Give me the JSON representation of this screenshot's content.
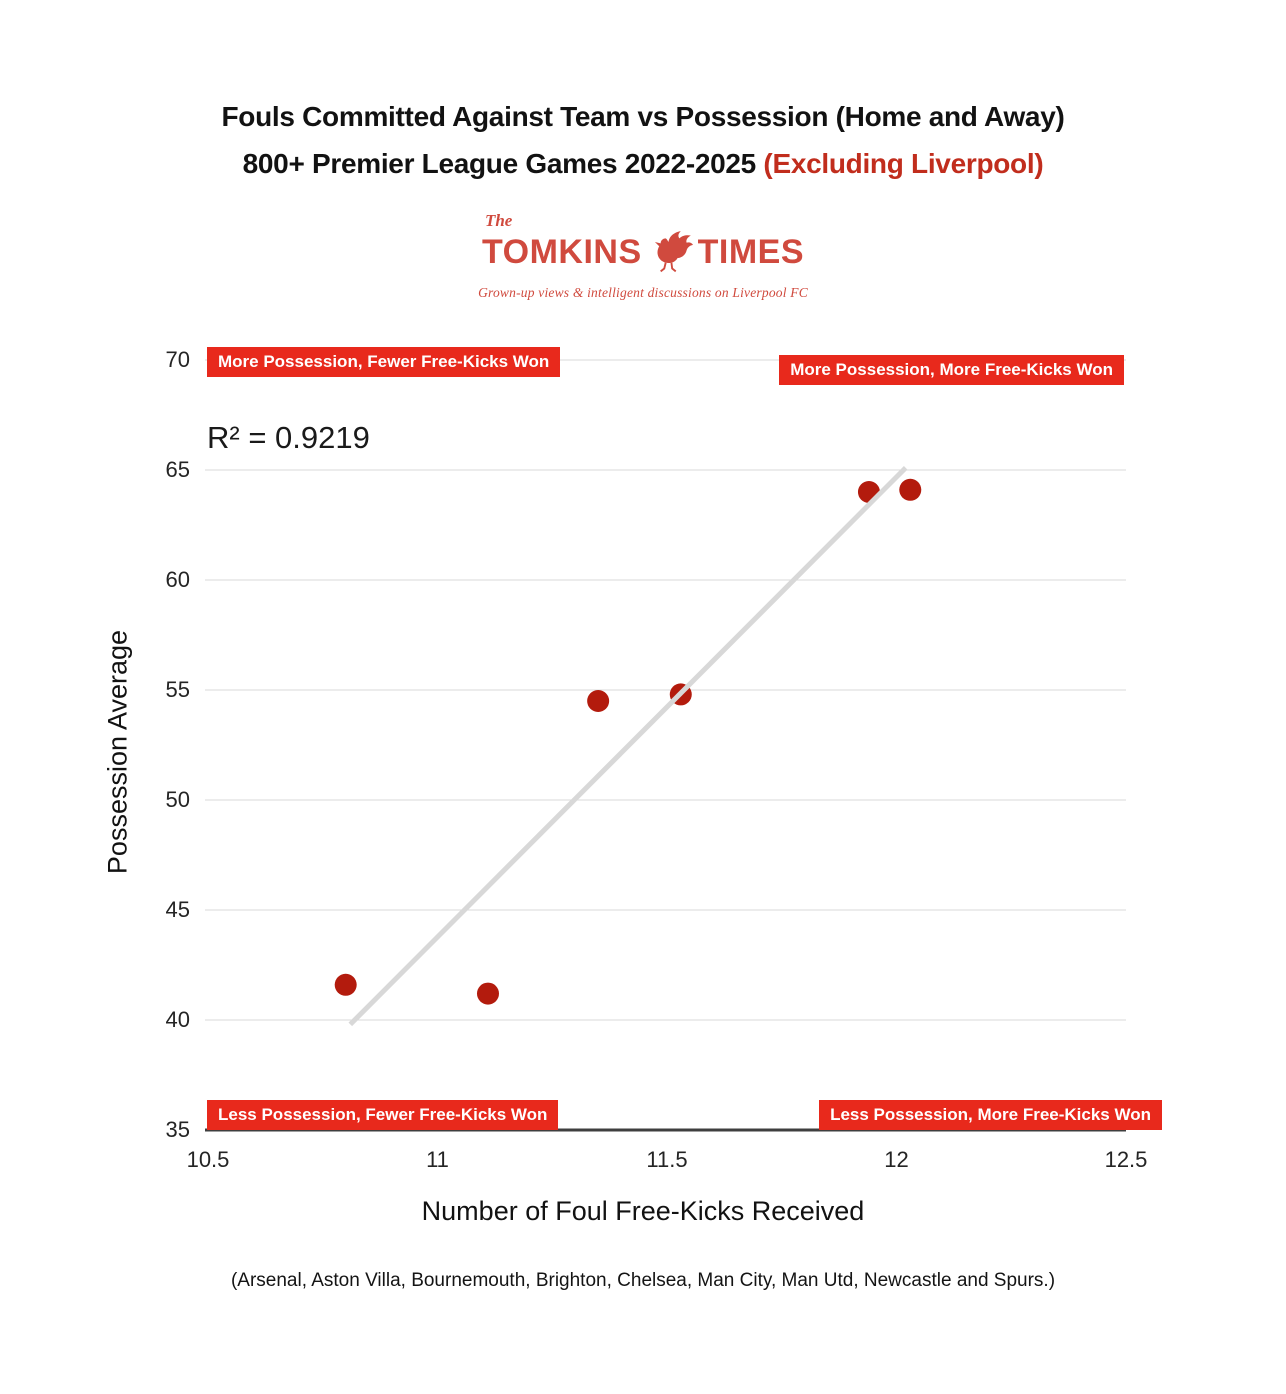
{
  "title": {
    "line1": "Fouls Committed Against Team vs Possession (Home and Away)",
    "line2_black": "800+ Premier League Games 2022-2025 ",
    "line2_red": "(Excluding Liverpool)",
    "red_color": "#c12d1d"
  },
  "logo": {
    "the": "The",
    "name_left": "TOMKINS",
    "name_right": "TIMES",
    "tagline": "Grown-up views & intelligent discussions on Liverpool FC",
    "color": "#d04a3e"
  },
  "quadrant_labels": {
    "top_left": "More Possession, Fewer Free-Kicks Won",
    "top_right": "More Possession, More Free-Kicks Won",
    "bottom_left": "Less Possession, Fewer Free-Kicks Won",
    "bottom_right": "Less Possession, More Free-Kicks Won",
    "background": "#e8291c",
    "text_color": "#ffffff"
  },
  "annotation": {
    "r_squared_label": "R² = 0.9219"
  },
  "footer": "(Arsenal, Aston Villa, Bournemouth, Brighton, Chelsea, Man City, Man Utd, Newcastle and Spurs.)",
  "chart_data": {
    "type": "scatter",
    "title": "Fouls Committed Against Team vs Possession (Home and Away) — 800+ Premier League Games 2022-2025 (Excluding Liverpool)",
    "xlabel": "Number of Foul Free-Kicks Received",
    "ylabel": "Possession Average",
    "xlim": [
      10.5,
      12.5
    ],
    "ylim": [
      35,
      70
    ],
    "x_ticks": [
      10.5,
      11,
      11.5,
      12,
      12.5
    ],
    "y_ticks": [
      35,
      40,
      45,
      50,
      55,
      60,
      65,
      70
    ],
    "grid": "horizontal",
    "grid_color": "#dadada",
    "axis_color": "#3f3f3f",
    "point_color": "#b31b0d",
    "r_squared": 0.9219,
    "points": [
      {
        "x": 10.8,
        "y": 41.6
      },
      {
        "x": 11.11,
        "y": 41.2
      },
      {
        "x": 11.35,
        "y": 54.5
      },
      {
        "x": 11.53,
        "y": 54.8
      },
      {
        "x": 11.94,
        "y": 64.0
      },
      {
        "x": 12.03,
        "y": 64.1
      }
    ],
    "trendline": {
      "x1": 10.81,
      "y1": 39.8,
      "x2": 12.02,
      "y2": 65.1,
      "color": "#d8d8d8"
    }
  }
}
